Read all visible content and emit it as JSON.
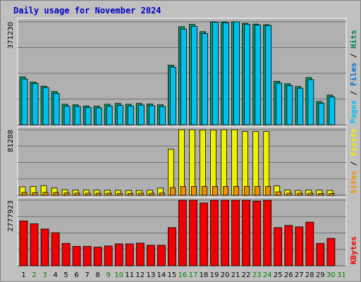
{
  "chart_data": {
    "type": "bar",
    "title": "Daily usage for November 2024",
    "days": [
      {
        "label": "1",
        "weekend": false
      },
      {
        "label": "2",
        "weekend": true
      },
      {
        "label": "3",
        "weekend": true
      },
      {
        "label": "4",
        "weekend": false
      },
      {
        "label": "5",
        "weekend": false
      },
      {
        "label": "6",
        "weekend": false
      },
      {
        "label": "7",
        "weekend": false
      },
      {
        "label": "8",
        "weekend": false
      },
      {
        "label": "9",
        "weekend": true
      },
      {
        "label": "10",
        "weekend": true
      },
      {
        "label": "11",
        "weekend": false
      },
      {
        "label": "12",
        "weekend": false
      },
      {
        "label": "13",
        "weekend": false
      },
      {
        "label": "14",
        "weekend": false
      },
      {
        "label": "15",
        "weekend": false
      },
      {
        "label": "16",
        "weekend": true
      },
      {
        "label": "17",
        "weekend": true
      },
      {
        "label": "18",
        "weekend": false
      },
      {
        "label": "19",
        "weekend": false
      },
      {
        "label": "20",
        "weekend": false
      },
      {
        "label": "21",
        "weekend": false
      },
      {
        "label": "22",
        "weekend": false
      },
      {
        "label": "23",
        "weekend": true
      },
      {
        "label": "24",
        "weekend": true
      },
      {
        "label": "25",
        "weekend": false
      },
      {
        "label": "26",
        "weekend": false
      },
      {
        "label": "27",
        "weekend": false
      },
      {
        "label": "28",
        "weekend": false
      },
      {
        "label": "29",
        "weekend": false
      },
      {
        "label": "30",
        "weekend": true
      },
      {
        "label": "31",
        "weekend": true
      }
    ],
    "panels": [
      {
        "id": "hits",
        "ymax_label": "371230",
        "ymax": 371230,
        "side_labels": [
          {
            "text": "Pages",
            "color": "#00c0f0"
          },
          {
            "text": " / ",
            "color": "#000000"
          },
          {
            "text": "Files",
            "color": "#0070d0"
          },
          {
            "text": " / ",
            "color": "#000000"
          },
          {
            "text": "Hits",
            "color": "#008060"
          }
        ],
        "series": [
          {
            "name": "Hits",
            "color": "#00a070",
            "values": [
              173000,
              154000,
              139000,
              120000,
              74000,
              72000,
              68000,
              67000,
              74000,
              77000,
              74000,
              77000,
              75000,
              72000,
              215000,
              354000,
              362000,
              336000,
              375000,
              373000,
              377000,
              366000,
              363000,
              361000,
              157000,
              148000,
              138000,
              170000,
              84000,
              107000,
              0
            ]
          },
          {
            "name": "Files",
            "color": "#00c0f0",
            "values": [
              165000,
              149000,
              134000,
              113000,
              67000,
              66000,
              62000,
              61000,
              67000,
              70000,
              68000,
              71000,
              69000,
              66000,
              208000,
              345000,
              355000,
              329000,
              370000,
              368000,
              373000,
              362000,
              360000,
              358000,
              150000,
              141000,
              132000,
              163000,
              78000,
              100000,
              0
            ]
          }
        ]
      },
      {
        "id": "sites",
        "ymax_label": "81288",
        "ymax": 81288,
        "side_labels": [
          {
            "text": "Sites",
            "color": "#f09000"
          },
          {
            "text": " / ",
            "color": "#000000"
          },
          {
            "text": "Visits",
            "color": "#f0f000"
          }
        ],
        "series": [
          {
            "name": "Visits",
            "color": "#f0f000",
            "values": [
              10500,
              11000,
              12000,
              9000,
              7000,
              6500,
              6500,
              6500,
              6200,
              6200,
              6000,
              6000,
              6200,
              8900,
              57000,
              84000,
              84000,
              81000,
              81000,
              82000,
              82000,
              79000,
              79000,
              79000,
              11600,
              6600,
              6000,
              6500,
              6400,
              6000,
              0
            ]
          },
          {
            "name": "Sites",
            "color": "#f09000",
            "values": [
              3500,
              3200,
              3500,
              3300,
              2800,
              2600,
              2500,
              2500,
              2500,
              2400,
              2400,
              2500,
              2500,
              2800,
              9600,
              11000,
              11000,
              11000,
              11000,
              11000,
              11000,
              11000,
              11000,
              11000,
              4300,
              2500,
              2500,
              2500,
              2300,
              2300,
              0
            ]
          }
        ]
      },
      {
        "id": "kbytes",
        "ymax_label": "2777923",
        "ymax": 2777923,
        "side_labels": [
          {
            "text": "KBytes",
            "color": "#f00000"
          }
        ],
        "series": [
          {
            "name": "KBytes",
            "color": "#f00000",
            "values": [
              1900000,
              1780000,
              1560000,
              1400000,
              950000,
              820000,
              820000,
              790000,
              840000,
              930000,
              930000,
              960000,
              870000,
              870000,
              1620000,
              2800000,
              2980000,
              2660000,
              3200000,
              3000000,
              3170000,
              2950000,
              2740000,
              2880000,
              1620000,
              1710000,
              1650000,
              1850000,
              950000,
              1160000,
              0
            ]
          }
        ]
      }
    ]
  },
  "colors": {
    "background": "#c0c0c0",
    "plot_bg": "#b0b0b0",
    "title": "#0000c0",
    "gridline": "#707070",
    "weekday_label": "#000000",
    "weekend_label": "#008000"
  }
}
